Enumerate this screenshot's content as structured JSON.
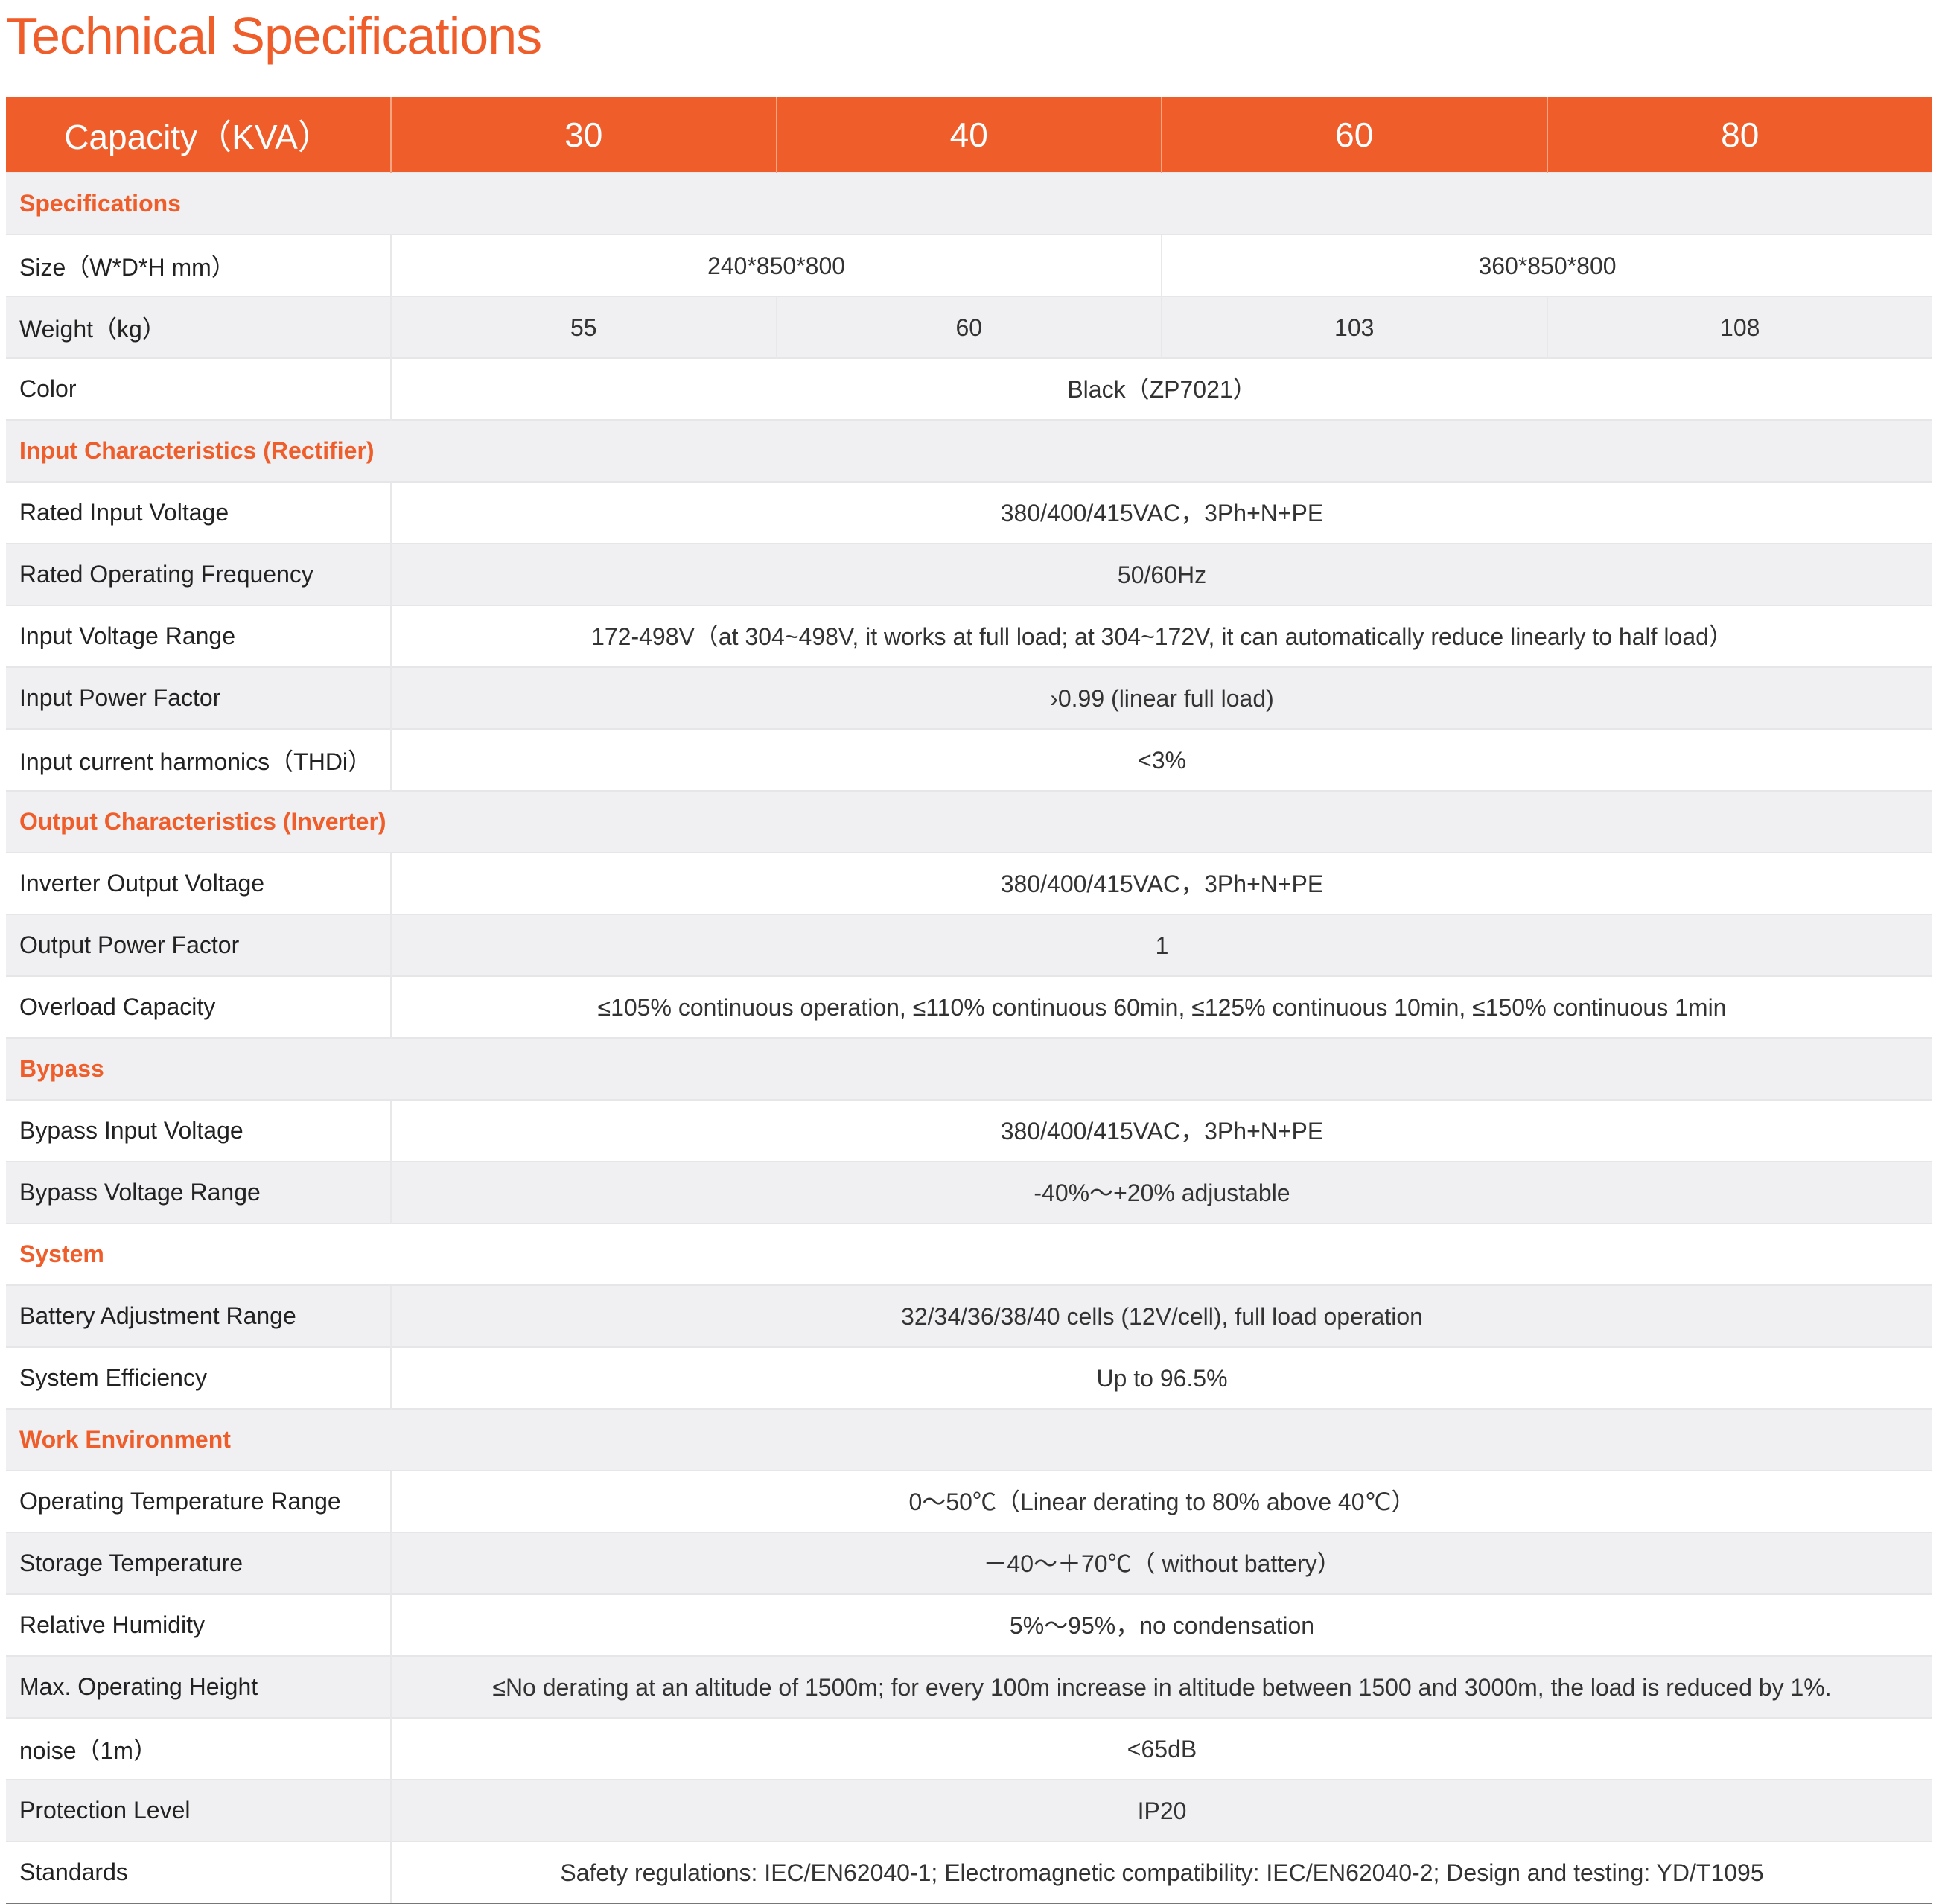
{
  "title": "Technical Specifications",
  "colors": {
    "accent": "#ee5d2a",
    "row_alt": "#f0f0f2"
  },
  "header": [
    "Capacity（KVA）",
    "30",
    "40",
    "60",
    "80"
  ],
  "rows": [
    {
      "type": "section",
      "label": "Specifications"
    },
    {
      "label": "Size（W*D*H mm）",
      "cells": [
        {
          "text": "240*850*800",
          "span": 2
        },
        {
          "text": "360*850*800",
          "span": 2
        }
      ]
    },
    {
      "label": "Weight（kg）",
      "cells": [
        {
          "text": "55",
          "span": 1
        },
        {
          "text": "60",
          "span": 1
        },
        {
          "text": "103",
          "span": 1
        },
        {
          "text": "108",
          "span": 1
        }
      ]
    },
    {
      "label": "Color",
      "cells": [
        {
          "text": "Black（ZP7021）",
          "span": 4
        }
      ]
    },
    {
      "type": "section",
      "label": "Input Characteristics (Rectifier)"
    },
    {
      "label": "Rated Input Voltage",
      "cells": [
        {
          "text": "380/400/415VAC，3Ph+N+PE",
          "span": 4
        }
      ]
    },
    {
      "label": "Rated Operating Frequency",
      "cells": [
        {
          "text": "50/60Hz",
          "span": 4
        }
      ]
    },
    {
      "label": "Input Voltage Range",
      "cells": [
        {
          "text": "172-498V（at 304~498V, it works at full load; at 304~172V, it can automatically reduce linearly to half load）",
          "span": 4
        }
      ]
    },
    {
      "label": "Input Power Factor",
      "cells": [
        {
          "text": "›0.99 (linear full load)",
          "span": 4
        }
      ]
    },
    {
      "label": "Input current harmonics（THDi）",
      "cells": [
        {
          "text": "<3%",
          "span": 4
        }
      ]
    },
    {
      "type": "section",
      "label": "Output Characteristics (Inverter)"
    },
    {
      "label": "Inverter Output Voltage",
      "cells": [
        {
          "text": "380/400/415VAC，3Ph+N+PE",
          "span": 4
        }
      ]
    },
    {
      "label": "Output Power Factor",
      "cells": [
        {
          "text": "1",
          "span": 4
        }
      ]
    },
    {
      "label": "Overload Capacity",
      "cells": [
        {
          "text": "≤105% continuous operation, ≤110% continuous 60min, ≤125% continuous 10min, ≤150% continuous 1min",
          "span": 4
        }
      ]
    },
    {
      "type": "section",
      "label": "Bypass"
    },
    {
      "label": "Bypass Input Voltage",
      "cells": [
        {
          "text": "380/400/415VAC，3Ph+N+PE",
          "span": 4
        }
      ]
    },
    {
      "label": "Bypass Voltage Range",
      "cells": [
        {
          "text": "-40%～+20% adjustable",
          "span": 4
        }
      ]
    },
    {
      "type": "section",
      "label": "System"
    },
    {
      "label": "Battery Adjustment Range",
      "cells": [
        {
          "text": "32/34/36/38/40 cells (12V/cell), full load operation",
          "span": 4
        }
      ]
    },
    {
      "label": "System Efficiency",
      "cells": [
        {
          "text": "Up to 96.5%",
          "span": 4
        }
      ]
    },
    {
      "type": "section",
      "label": "Work Environment"
    },
    {
      "label": "Operating Temperature Range",
      "cells": [
        {
          "text": "0～50℃（Linear derating to 80% above 40℃）",
          "span": 4
        }
      ]
    },
    {
      "label": "Storage Temperature",
      "cells": [
        {
          "text": "－40～＋70℃（ without battery）",
          "span": 4
        }
      ]
    },
    {
      "label": "Relative Humidity",
      "cells": [
        {
          "text": "5%～95%，no condensation",
          "span": 4
        }
      ]
    },
    {
      "label": "Max. Operating Height",
      "cells": [
        {
          "text": "≤No derating at an altitude of 1500m; for every 100m increase in altitude between 1500 and 3000m, the load is reduced by 1%.",
          "span": 4
        }
      ]
    },
    {
      "label": "noise（1m）",
      "cells": [
        {
          "text": "<65dB",
          "span": 4
        }
      ]
    },
    {
      "label": "Protection Level",
      "cells": [
        {
          "text": "IP20",
          "span": 4
        }
      ]
    },
    {
      "label": "Standards",
      "cells": [
        {
          "text": "Safety regulations: IEC/EN62040-1; Electromagnetic compatibility: IEC/EN62040-2; Design and testing: YD/T1095",
          "span": 4
        }
      ]
    }
  ]
}
